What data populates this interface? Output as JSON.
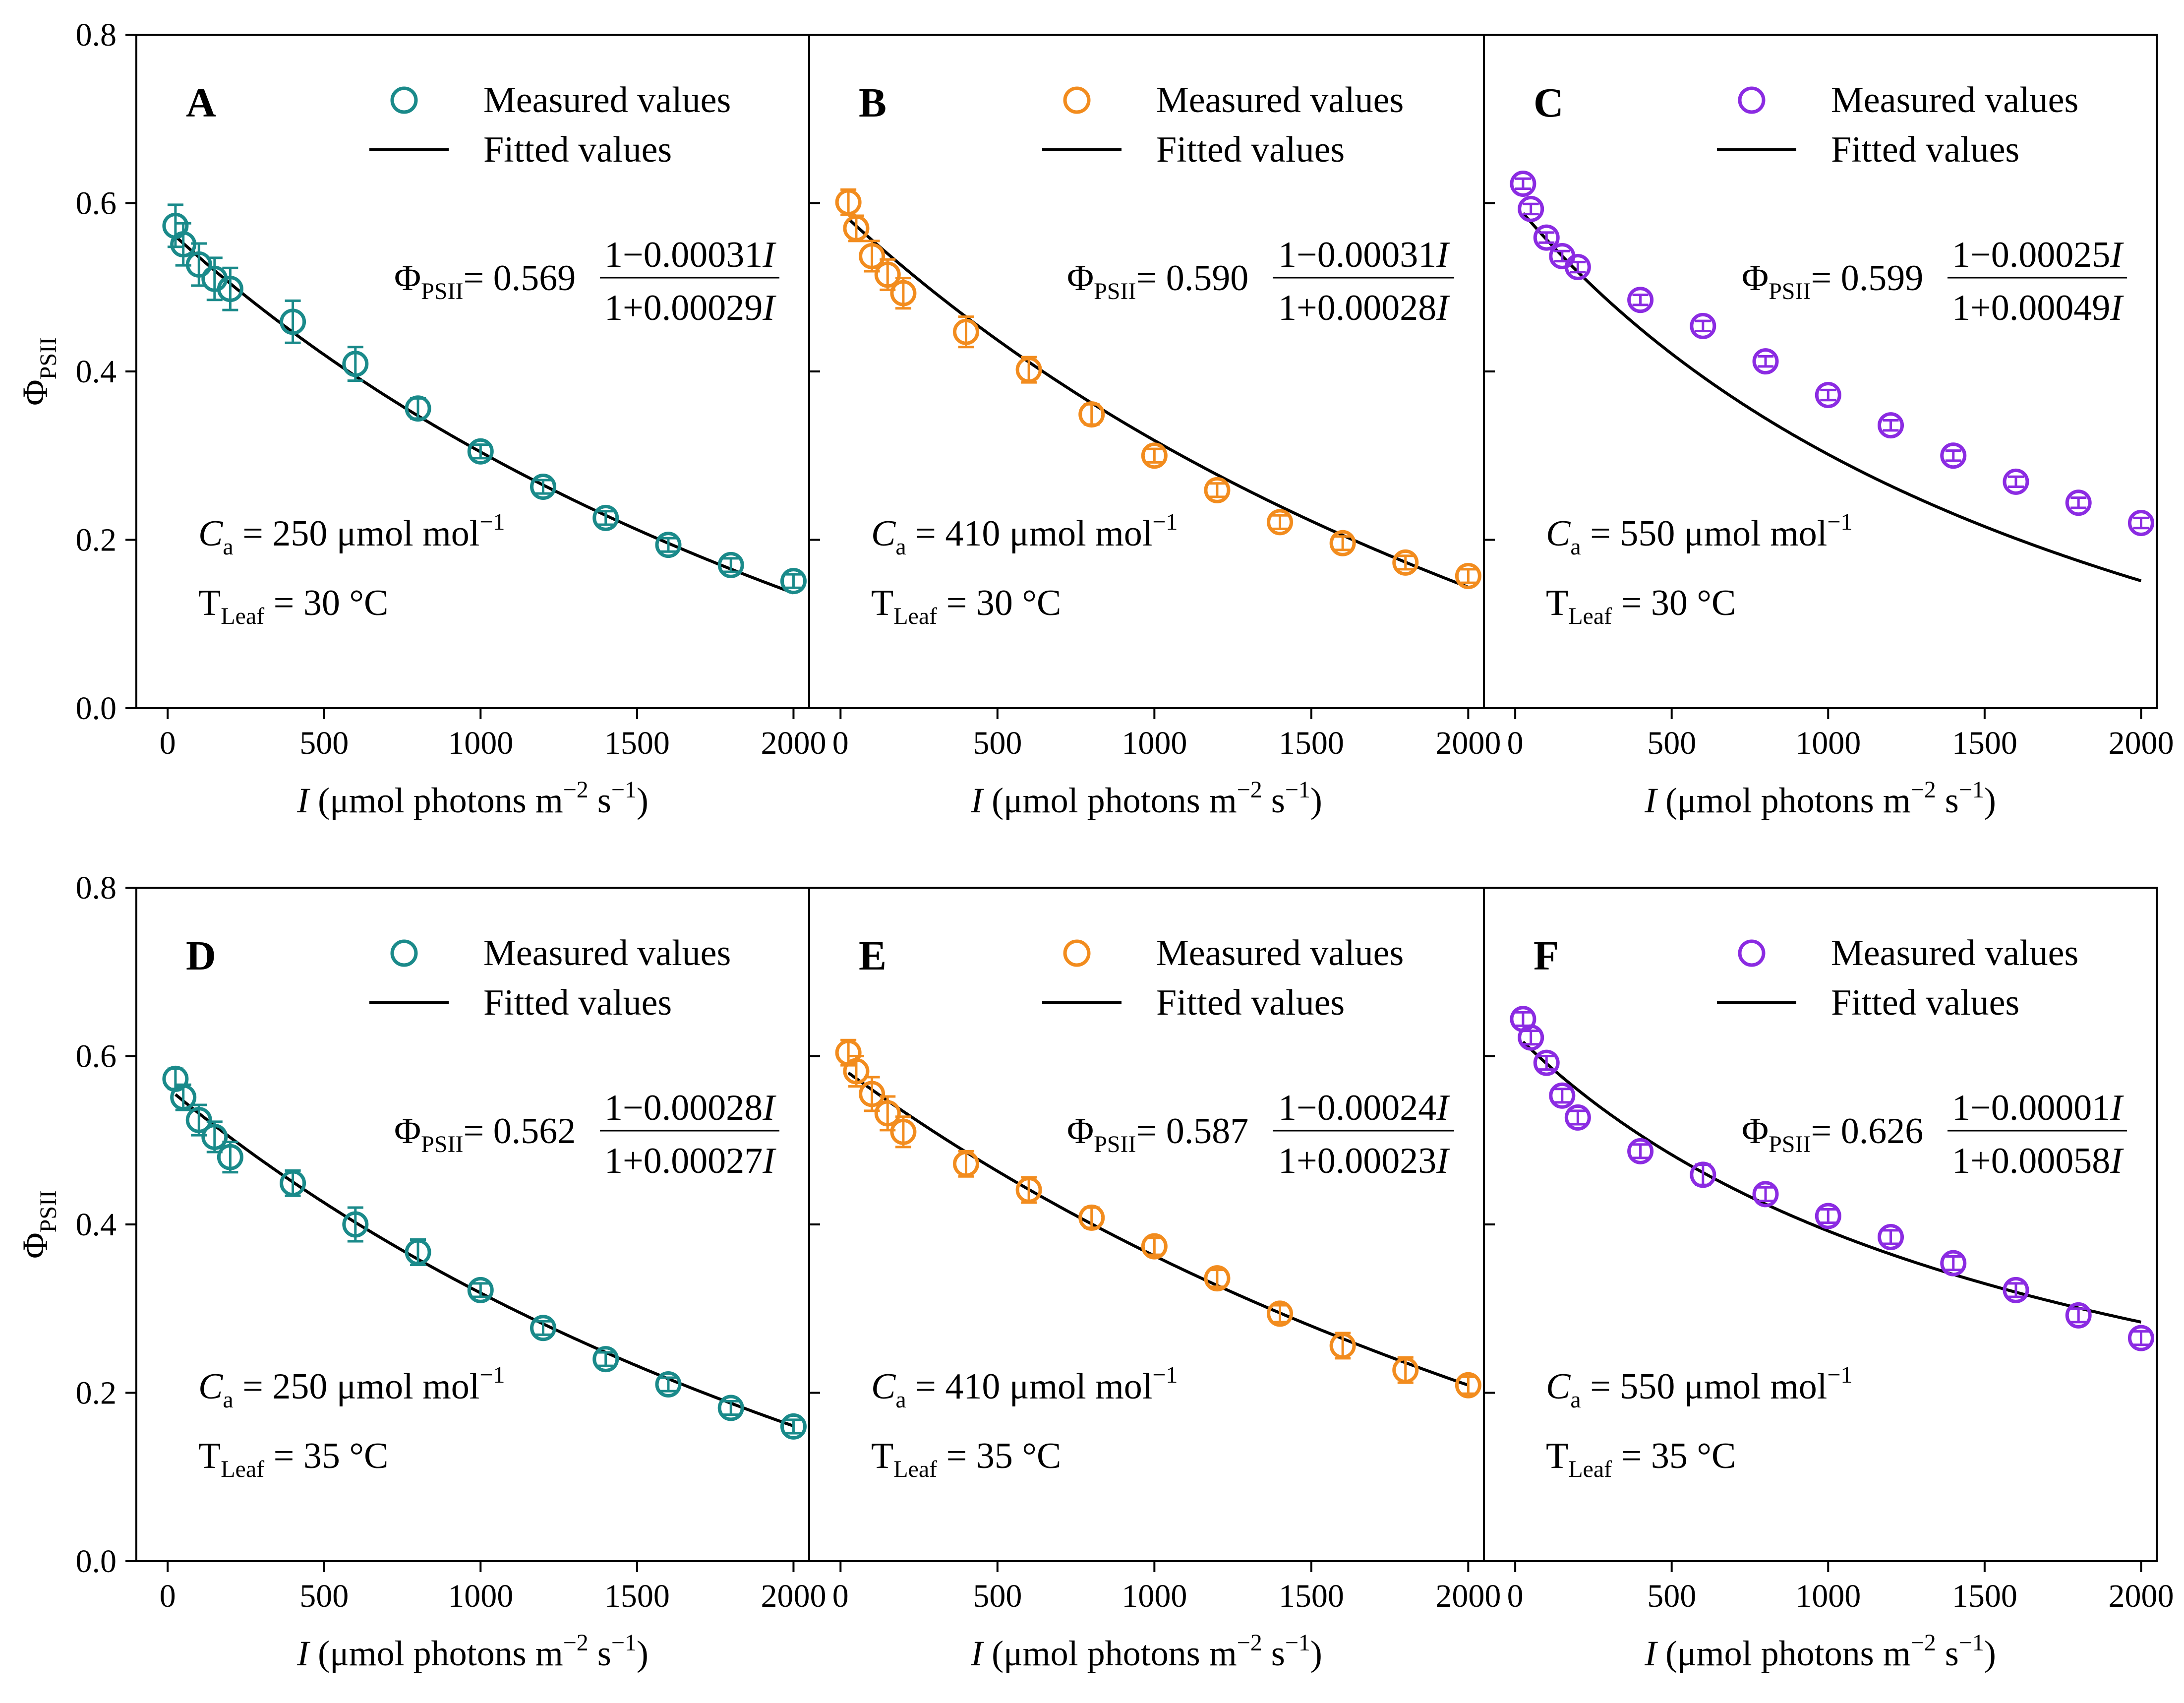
{
  "figure": {
    "y_axis_label": "Φ",
    "y_axis_label_sub": "PSII",
    "x_axis_label_italic": "I",
    "x_axis_label_rest": " (μmol photons m",
    "x_axis_label_exp1": "−2",
    "x_axis_label_mid": " s",
    "x_axis_label_exp2": "−1",
    "x_axis_label_end": ")",
    "legend_measured": "Measured values",
    "legend_fitted": "Fitted values",
    "eq_lhs": "Φ",
    "eq_lhs_sub": "PSII",
    "eq_equals": "= ",
    "ca_symbol": "C",
    "ca_sub": "a",
    "ca_unit": "μmol mol",
    "ca_exp": "−1",
    "t_symbol": "T",
    "t_sub": "Leaf",
    "t_unit": "°C",
    "colors": {
      "teal": "#1a8a8a",
      "orange": "#f28c1e",
      "purple": "#8b2be2",
      "fit": "#000000"
    }
  },
  "chart_data": [
    {
      "panel": "A",
      "type": "scatter",
      "color": "teal",
      "xlim": [
        -100,
        2050
      ],
      "ylim": [
        0,
        0.8
      ],
      "xticks": [
        0,
        500,
        1000,
        1500,
        2000
      ],
      "yticks": [
        0.0,
        0.2,
        0.4,
        0.6,
        0.8
      ],
      "ytick_labels": [
        "0.0",
        "0.2",
        "0.4",
        "0.6",
        "0.8"
      ],
      "xlabel": "I (μmol photons m−2 s−1)",
      "ylabel": "ΦPSII",
      "x": [
        25,
        50,
        100,
        150,
        200,
        400,
        600,
        800,
        1000,
        1200,
        1400,
        1600,
        1800,
        2000
      ],
      "y": [
        0.573,
        0.551,
        0.527,
        0.51,
        0.498,
        0.459,
        0.409,
        0.356,
        0.305,
        0.263,
        0.226,
        0.194,
        0.17,
        0.151
      ],
      "err": [
        0.025,
        0.025,
        0.025,
        0.025,
        0.025,
        0.025,
        0.02,
        0.012,
        0.008,
        0.008,
        0.008,
        0.008,
        0.008,
        0.008
      ],
      "fit": {
        "a": 0.569,
        "b": 0.00031,
        "c": 0.00029
      },
      "eq_coef": "0.569",
      "eq_num": "1−0.00031",
      "eq_den": "1+0.00029",
      "ca": "250",
      "t": "30"
    },
    {
      "panel": "B",
      "type": "scatter",
      "color": "orange",
      "xlim": [
        -100,
        2050
      ],
      "ylim": [
        0,
        0.8
      ],
      "xticks": [
        0,
        500,
        1000,
        1500,
        2000
      ],
      "yticks": [
        0.0,
        0.2,
        0.4,
        0.6,
        0.8
      ],
      "xlabel": "I (μmol photons m−2 s−1)",
      "x": [
        25,
        50,
        100,
        150,
        200,
        400,
        600,
        800,
        1000,
        1200,
        1400,
        1600,
        1800,
        2000
      ],
      "y": [
        0.601,
        0.57,
        0.537,
        0.515,
        0.493,
        0.447,
        0.402,
        0.349,
        0.3,
        0.259,
        0.221,
        0.196,
        0.173,
        0.157
      ],
      "err": [
        0.015,
        0.015,
        0.018,
        0.018,
        0.018,
        0.018,
        0.015,
        0.012,
        0.008,
        0.008,
        0.008,
        0.008,
        0.008,
        0.008
      ],
      "fit": {
        "a": 0.59,
        "b": 0.00031,
        "c": 0.00028
      },
      "eq_coef": "0.590",
      "eq_num": "1−0.00031",
      "eq_den": "1+0.00028",
      "ca": "410",
      "t": "30"
    },
    {
      "panel": "C",
      "type": "scatter",
      "color": "purple",
      "xlim": [
        -100,
        2050
      ],
      "ylim": [
        0,
        0.8
      ],
      "xticks": [
        0,
        500,
        1000,
        1500,
        2000
      ],
      "yticks": [
        0.0,
        0.2,
        0.4,
        0.6,
        0.8
      ],
      "xlabel": "I (μmol photons m−2 s−1)",
      "x": [
        25,
        50,
        100,
        150,
        200,
        400,
        600,
        800,
        1000,
        1200,
        1400,
        1600,
        1800,
        2000
      ],
      "y": [
        0.623,
        0.593,
        0.559,
        0.537,
        0.524,
        0.485,
        0.454,
        0.412,
        0.372,
        0.336,
        0.3,
        0.269,
        0.244,
        0.22
      ],
      "err": [
        0.006,
        0.006,
        0.006,
        0.006,
        0.006,
        0.006,
        0.006,
        0.006,
        0.006,
        0.006,
        0.006,
        0.006,
        0.006,
        0.006
      ],
      "fit": {
        "a": 0.599,
        "b": 0.00025,
        "c": 0.00049
      },
      "eq_coef": "0.599",
      "eq_num": "1−0.00025",
      "eq_den": "1+0.00049",
      "ca": "550",
      "t": "30"
    },
    {
      "panel": "D",
      "type": "scatter",
      "color": "teal",
      "xlim": [
        -100,
        2050
      ],
      "ylim": [
        0,
        0.8
      ],
      "xticks": [
        0,
        500,
        1000,
        1500,
        2000
      ],
      "yticks": [
        0.0,
        0.2,
        0.4,
        0.6,
        0.8
      ],
      "ytick_labels": [
        "0.0",
        "0.2",
        "0.4",
        "0.6",
        "0.8"
      ],
      "xlabel": "I (μmol photons m−2 s−1)",
      "ylabel": "ΦPSII",
      "x": [
        25,
        50,
        100,
        150,
        200,
        400,
        600,
        800,
        1000,
        1200,
        1400,
        1600,
        1800,
        2000
      ],
      "y": [
        0.573,
        0.551,
        0.524,
        0.504,
        0.48,
        0.449,
        0.4,
        0.367,
        0.322,
        0.277,
        0.24,
        0.21,
        0.182,
        0.16
      ],
      "err": [
        0.012,
        0.015,
        0.018,
        0.018,
        0.018,
        0.015,
        0.02,
        0.015,
        0.008,
        0.008,
        0.008,
        0.008,
        0.008,
        0.008
      ],
      "fit": {
        "a": 0.562,
        "b": 0.00028,
        "c": 0.00027
      },
      "eq_coef": "0.562",
      "eq_num": "1−0.00028",
      "eq_den": "1+0.00027",
      "ca": "250",
      "t": "35"
    },
    {
      "panel": "E",
      "type": "scatter",
      "color": "orange",
      "xlim": [
        -100,
        2050
      ],
      "ylim": [
        0,
        0.8
      ],
      "xticks": [
        0,
        500,
        1000,
        1500,
        2000
      ],
      "yticks": [
        0.0,
        0.2,
        0.4,
        0.6,
        0.8
      ],
      "xlabel": "I (μmol photons m−2 s−1)",
      "x": [
        25,
        50,
        100,
        150,
        200,
        400,
        600,
        800,
        1000,
        1200,
        1400,
        1600,
        1800,
        2000
      ],
      "y": [
        0.604,
        0.582,
        0.555,
        0.532,
        0.51,
        0.472,
        0.441,
        0.408,
        0.374,
        0.336,
        0.294,
        0.256,
        0.227,
        0.209
      ],
      "err": [
        0.015,
        0.018,
        0.02,
        0.02,
        0.018,
        0.015,
        0.015,
        0.012,
        0.01,
        0.01,
        0.01,
        0.015,
        0.015,
        0.01
      ],
      "fit": {
        "a": 0.587,
        "b": 0.00024,
        "c": 0.00023
      },
      "eq_coef": "0.587",
      "eq_num": "1−0.00024",
      "eq_den": "1+0.00023",
      "ca": "410",
      "t": "35"
    },
    {
      "panel": "F",
      "type": "scatter",
      "color": "purple",
      "xlim": [
        -100,
        2050
      ],
      "ylim": [
        0,
        0.8
      ],
      "xticks": [
        0,
        500,
        1000,
        1500,
        2000
      ],
      "yticks": [
        0.0,
        0.2,
        0.4,
        0.6,
        0.8
      ],
      "xlabel": "I (μmol photons m−2 s−1)",
      "x": [
        25,
        50,
        100,
        150,
        200,
        400,
        600,
        800,
        1000,
        1200,
        1400,
        1600,
        1800,
        2000
      ],
      "y": [
        0.644,
        0.622,
        0.592,
        0.553,
        0.527,
        0.487,
        0.459,
        0.436,
        0.41,
        0.385,
        0.354,
        0.322,
        0.292,
        0.265
      ],
      "err": [
        0.008,
        0.008,
        0.008,
        0.008,
        0.008,
        0.008,
        0.012,
        0.008,
        0.008,
        0.008,
        0.008,
        0.008,
        0.008,
        0.008
      ],
      "fit": {
        "a": 0.626,
        "b": 1e-05,
        "c": 0.00058
      },
      "eq_coef": "0.626",
      "eq_num": "1−0.00001",
      "eq_den": "1+0.00058",
      "ca": "550",
      "t": "35"
    }
  ]
}
